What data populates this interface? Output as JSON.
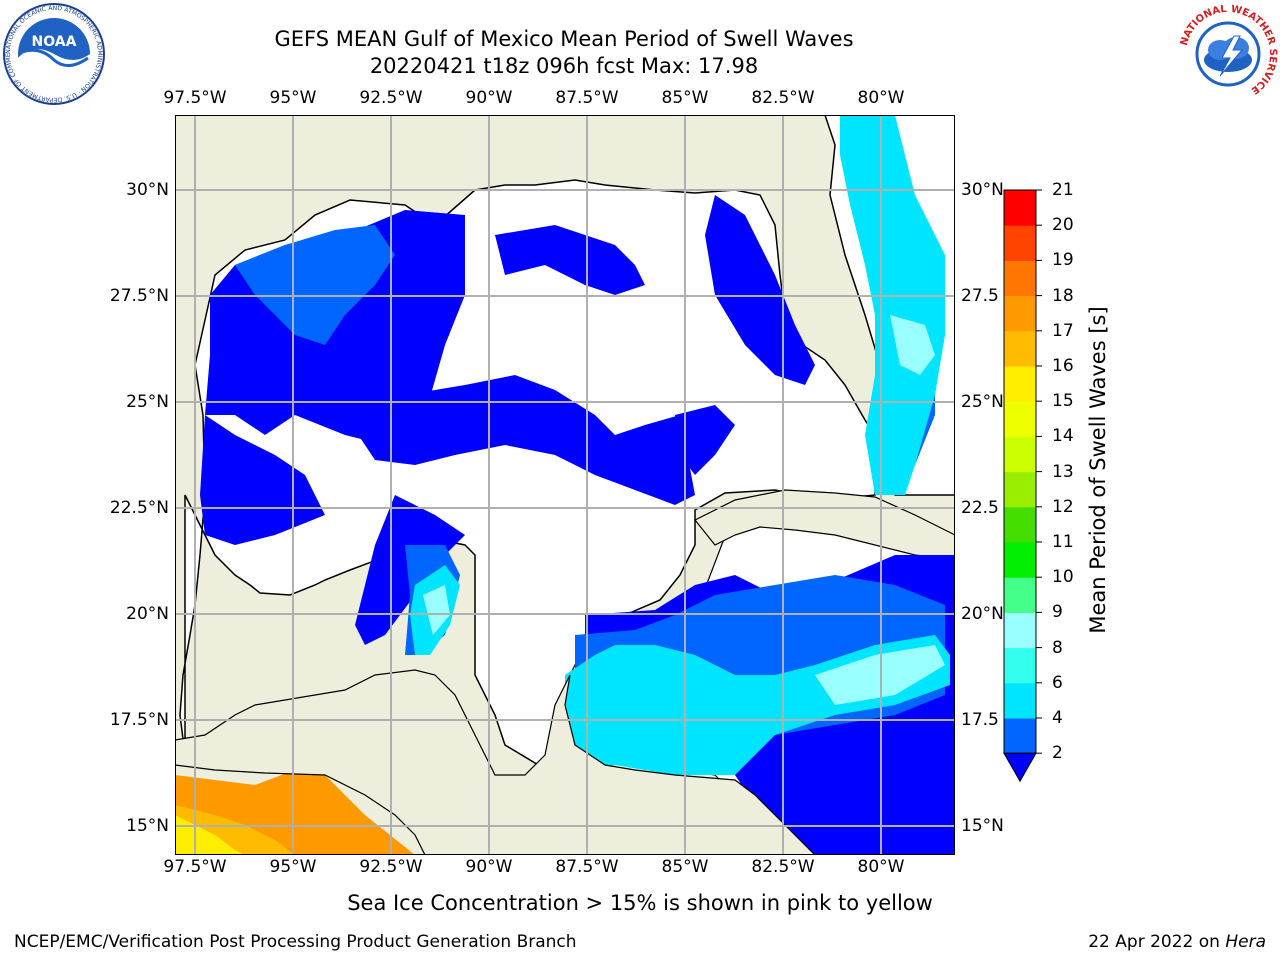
{
  "header": {
    "title_line1": "GEFS MEAN Gulf of Mexico Mean Period of Swell Waves",
    "title_line2": "20220421 t18z 096h fcst   Max: 17.98"
  },
  "map": {
    "lon_ticks": [
      "97.5°W",
      "95°W",
      "92.5°W",
      "90°W",
      "87.5°W",
      "85°W",
      "82.5°W",
      "80°W"
    ],
    "lat_ticks_left": [
      "30°N",
      "27.5°N",
      "25°N",
      "22.5°N",
      "20°N",
      "17.5°N",
      "15°N"
    ],
    "lat_ticks_right": [
      "30°N",
      "27.5",
      "25°N",
      "22.5",
      "20°N",
      "17.5",
      "15°N"
    ],
    "land_color": "#eeeedd",
    "ocean_missing_color": "#ffffff",
    "grid_color": "#b0b0b0"
  },
  "colorbar": {
    "label": "Mean Period of Swell Waves [s]",
    "ticks": [
      "2",
      "4",
      "6",
      "8",
      "9",
      "10",
      "11",
      "12",
      "13",
      "14",
      "15",
      "16",
      "17",
      "18",
      "19",
      "20",
      "21"
    ],
    "colors": [
      "#0000ff",
      "#0066ff",
      "#00e5ff",
      "#33ffee",
      "#99ffff",
      "#44ff88",
      "#00ee00",
      "#44dd00",
      "#99ee00",
      "#ccff00",
      "#eeff00",
      "#ffee00",
      "#ffbb00",
      "#ff9900",
      "#ff7700",
      "#ff4400",
      "#ff0000"
    ]
  },
  "footer": {
    "note": "Sea Ice Concentration > 15% is shown in pink to yellow",
    "credit": "NCEP/EMC/Verification Post Processing Product Generation Branch",
    "date_prefix": "22 Apr 2022 on ",
    "date_host": "Hera"
  },
  "logos": {
    "left_name": "NOAA",
    "left_ring_text": "NATIONAL OCEANIC AND ATMOSPHERIC ADMINISTRATION · U.S. DEPARTMENT OF COMMERCE",
    "right_ring_text": "NATIONAL WEATHER SERVICE"
  }
}
